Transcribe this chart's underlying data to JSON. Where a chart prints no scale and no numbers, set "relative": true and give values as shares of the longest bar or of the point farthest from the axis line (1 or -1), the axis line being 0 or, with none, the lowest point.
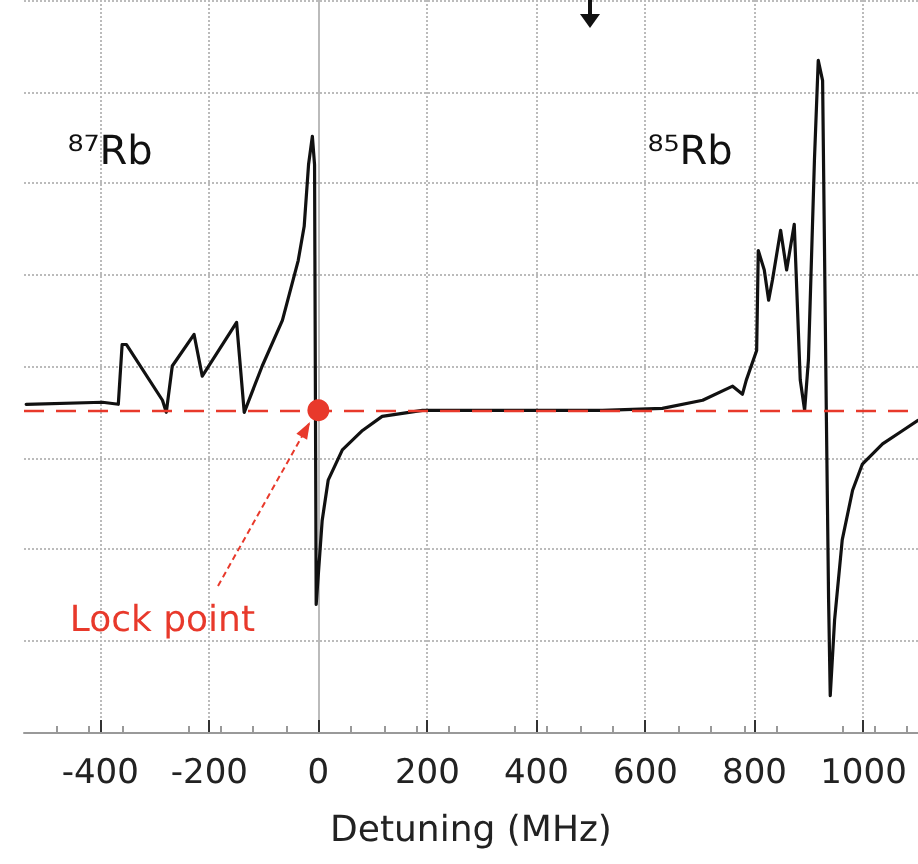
{
  "chart_data": {
    "type": "line",
    "relative": true,
    "xlabel": "Detuning (MHz)",
    "xlim": [
      -540,
      1100
    ],
    "xticks": [
      -400,
      -200,
      0,
      200,
      400,
      600,
      800,
      1000
    ],
    "grid": true,
    "line_style": "solid",
    "marker": "none",
    "series": [
      {
        "color": "#111111",
        "x": [
          -536,
          -396,
          -367,
          -360,
          -352,
          -286,
          -279,
          -268,
          -228,
          -213,
          -150,
          -136,
          -103,
          -66,
          -37,
          -26,
          -18,
          -11,
          -7,
          -4,
          7,
          18,
          44,
          81,
          117,
          191,
          521,
          631,
          705,
          760,
          778,
          785,
          804,
          807,
          818,
          826,
          833,
          848,
          859,
          873,
          884,
          892,
          899,
          910,
          917,
          925,
          932,
          936,
          939,
          947,
          961,
          980,
          998,
          1035,
          1072,
          1100
        ],
        "values": [
          0.488,
          0.491,
          0.488,
          0.577,
          0.577,
          0.494,
          0.476,
          0.545,
          0.592,
          0.53,
          0.61,
          0.476,
          0.545,
          0.613,
          0.702,
          0.753,
          0.845,
          0.887,
          0.845,
          0.19,
          0.315,
          0.375,
          0.42,
          0.449,
          0.47,
          0.479,
          0.479,
          0.482,
          0.494,
          0.515,
          0.503,
          0.524,
          0.568,
          0.717,
          0.688,
          0.643,
          0.673,
          0.747,
          0.688,
          0.756,
          0.524,
          0.479,
          0.554,
          0.851,
          1.0,
          0.97,
          0.464,
          0.196,
          0.054,
          0.167,
          0.286,
          0.36,
          0.399,
          0.429,
          0.449,
          0.464
        ]
      }
    ],
    "ref_lines": [
      {
        "axis": "y",
        "value": 0.479,
        "color": "#e8392b",
        "line_style": "dashed"
      }
    ],
    "annotations": [
      "⁸⁷Rb",
      "⁸⁵Rb",
      {
        "text": "Lock point",
        "x": 0,
        "y": 0.479
      }
    ]
  }
}
